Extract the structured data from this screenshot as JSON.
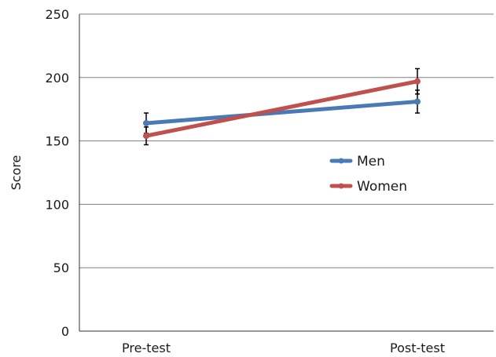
{
  "chart_data": {
    "type": "line",
    "title": "",
    "xlabel": "",
    "ylabel": "Score",
    "categories": [
      "Pre-test",
      "Post-test"
    ],
    "ylim": [
      0,
      250
    ],
    "yticks": [
      0,
      50,
      100,
      150,
      200,
      250
    ],
    "grid": "horizontal",
    "legend_position": "right-middle",
    "series": [
      {
        "name": "Men",
        "color": "#4a7ab5",
        "values": [
          164,
          181
        ],
        "error": [
          8,
          9
        ]
      },
      {
        "name": "Women",
        "color": "#c0504d",
        "values": [
          154,
          197
        ],
        "error": [
          7,
          10
        ]
      }
    ]
  }
}
